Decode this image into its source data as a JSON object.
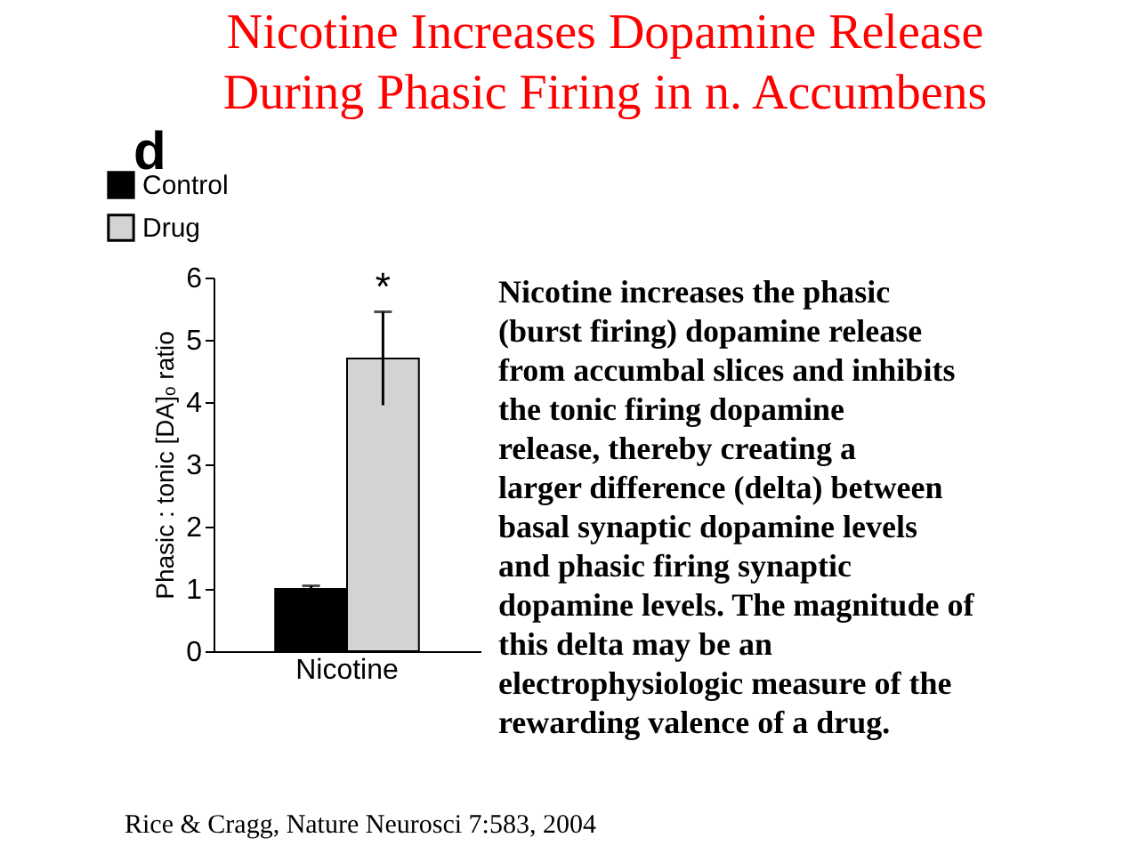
{
  "chart_data": {
    "type": "bar",
    "title": "Nicotine Increases Dopamine Release During Phasic Firing in n. Accumbens",
    "ylabel": "Phasic : tonic [DA]ₒ ratio",
    "categories": [
      "Nicotine"
    ],
    "series": [
      {
        "name": "Control",
        "color": "#000000",
        "values": [
          1.0
        ],
        "errors": [
          0.05
        ]
      },
      {
        "name": "Drug",
        "color": "#d3d3d3",
        "values": [
          4.7
        ],
        "errors": [
          0.75
        ]
      }
    ],
    "ylim": [
      0,
      6
    ],
    "yticks": [
      0,
      1,
      2,
      3,
      4,
      5,
      6
    ],
    "grid": false,
    "legend": "top left",
    "annotations": [
      "d",
      "*",
      "Nicotine increases the phasic (burst firing) dopamine release from accumbal slices and inhibits the tonic firing dopamine release, thereby creating a larger difference (delta) between basal synaptic dopamine levels and phasic firing synaptic dopamine levels. The magnitude of this delta may be an electrophysiologic measure of the rewarding valence of a drug.",
      "Rice & Cragg, Nature Neurosci 7:583, 2004"
    ]
  }
}
